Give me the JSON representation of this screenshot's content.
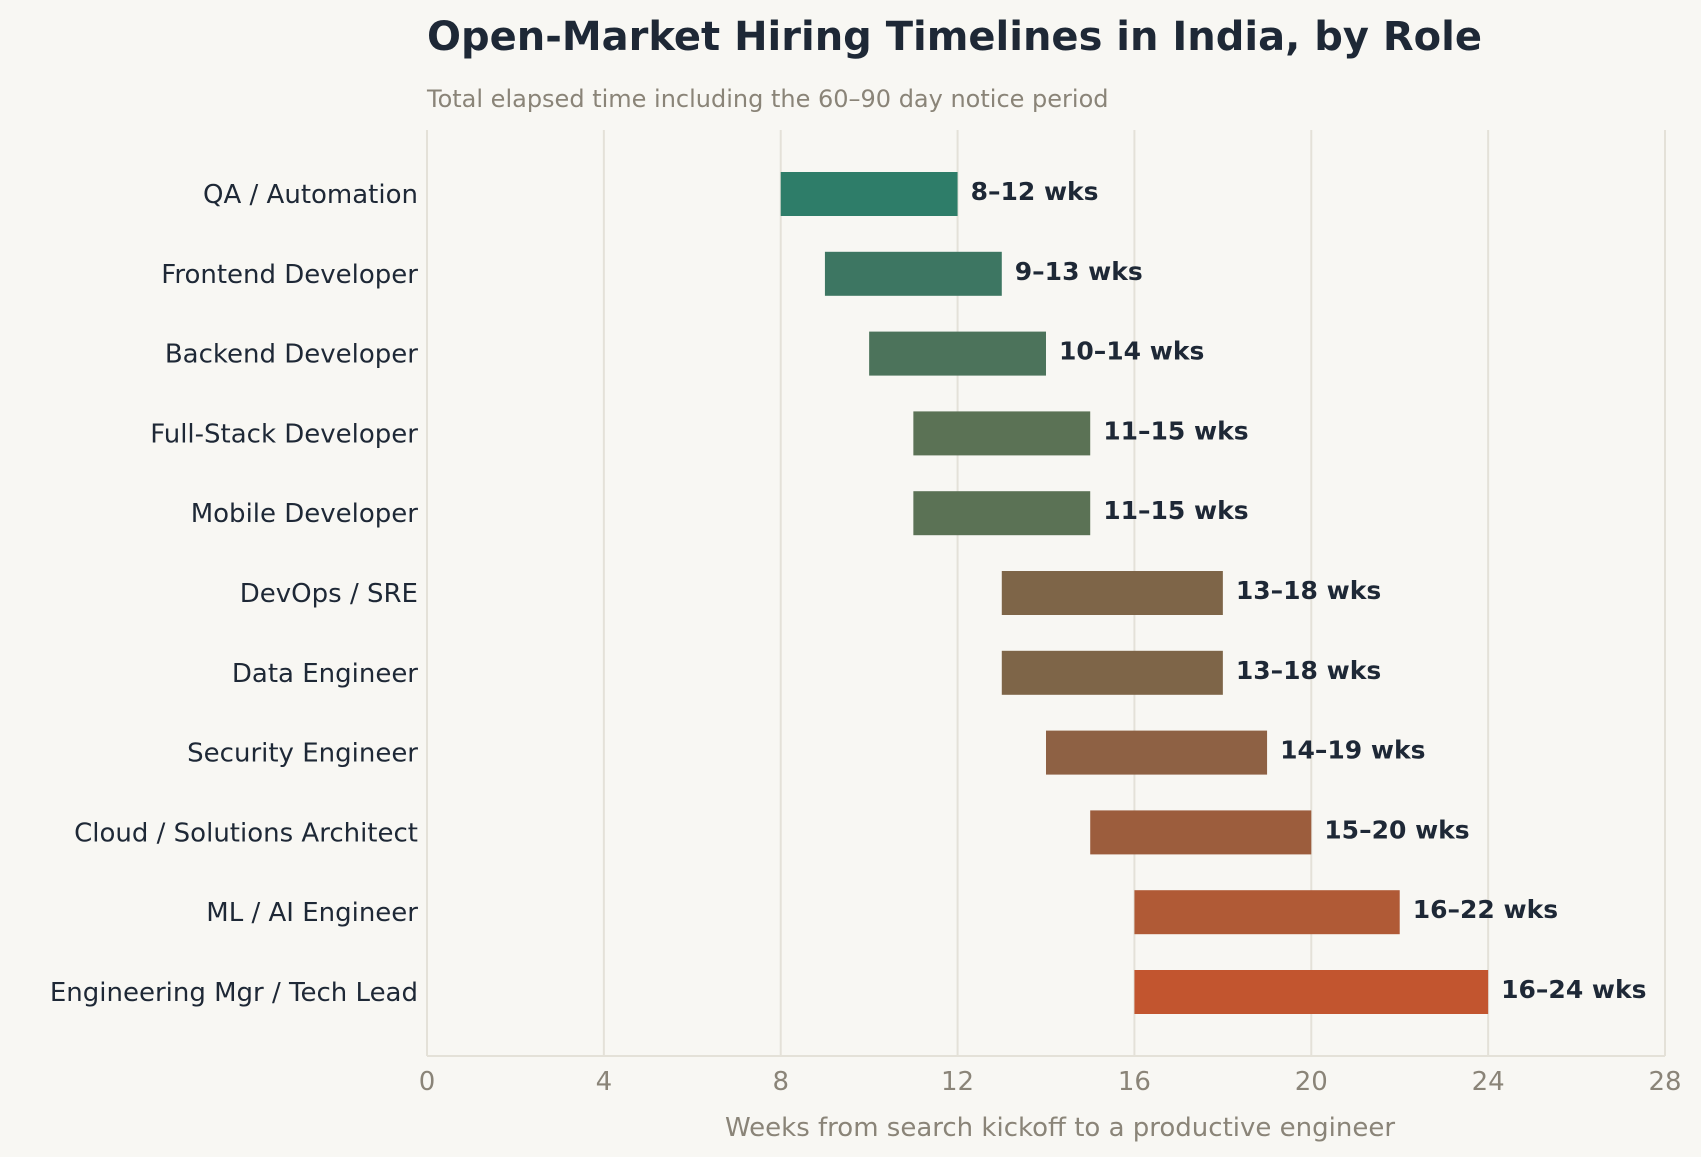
{
  "chart_data": {
    "type": "bar",
    "orientation": "horizontal",
    "style": "floating-range",
    "title": "Open-Market Hiring Timelines in India, by Role",
    "subtitle": "Total elapsed time including the 60–90 day notice period",
    "xlabel": "Weeks from search kickoff to a productive engineer",
    "ylabel": "",
    "xlim": [
      0,
      28
    ],
    "xticks": [
      0,
      4,
      8,
      12,
      16,
      20,
      24,
      28
    ],
    "xtick_labels": [
      "0",
      "4",
      "8",
      "12",
      "16",
      "20",
      "24",
      "28"
    ],
    "grid": "vertical",
    "legend": "none",
    "categories": [
      "QA / Automation",
      "Frontend Developer",
      "Backend Developer",
      "Full-Stack Developer",
      "Mobile Developer",
      "DevOps / SRE",
      "Data Engineer",
      "Security Engineer",
      "Cloud / Solutions Architect",
      "ML / AI Engineer",
      "Engineering Mgr / Tech Lead"
    ],
    "series": [
      {
        "values": [
          [
            8,
            12
          ],
          [
            9,
            13
          ],
          [
            10,
            14
          ],
          [
            11,
            15
          ],
          [
            11,
            15
          ],
          [
            13,
            18
          ],
          [
            13,
            18
          ],
          [
            14,
            19
          ],
          [
            15,
            20
          ],
          [
            16,
            22
          ],
          [
            16,
            24
          ]
        ]
      }
    ],
    "data_labels": [
      "8–12 wks",
      "9–13 wks",
      "10–14 wks",
      "11–15 wks",
      "11–15 wks",
      "13–18 wks",
      "13–18 wks",
      "14–19 wks",
      "15–20 wks",
      "16–22 wks",
      "16–24 wks"
    ],
    "colors": [
      "#2e7d69",
      "#3d7662",
      "#4c735b",
      "#5b7255",
      "#5b7255",
      "#7e6548",
      "#7e6548",
      "#8e6144",
      "#9c5d3d",
      "#b05a36",
      "#c2552f"
    ],
    "text_colors": {
      "title": "#1e2836",
      "subtitle": "#8a8478",
      "category_labels": "#1e2836",
      "tick_labels": "#8a8478",
      "data_labels": "#1e2836"
    },
    "grid_color": "#e4e1d8",
    "background": "#f8f7f3"
  }
}
